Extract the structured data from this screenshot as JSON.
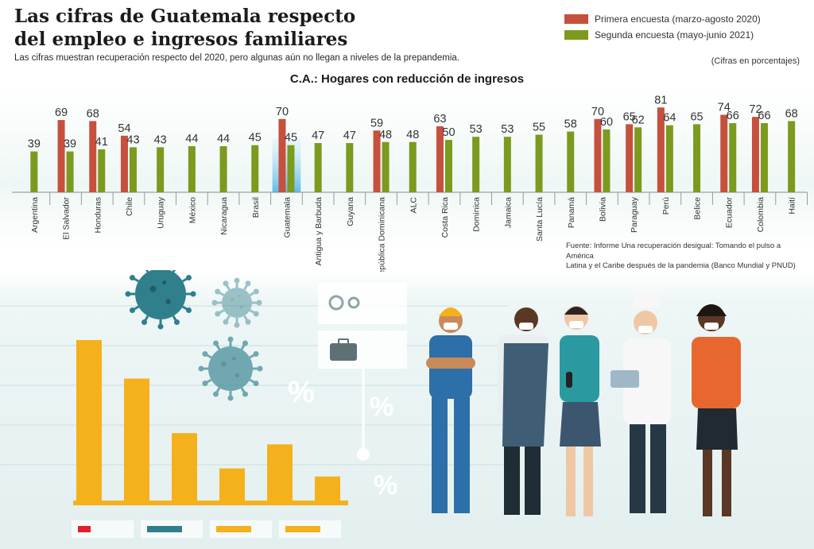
{
  "header": {
    "title_line1": "Las cifras de Guatemala respecto",
    "title_line2": "del empleo e ingresos familiares",
    "subtitle": "Las cifras muestran recuperación respecto del 2020, pero algunas aún no llegan a niveles de la prepandemia.",
    "note": "(Cifras en porcentajes)"
  },
  "legend": [
    {
      "label": "Primera encuesta (marzo-agosto 2020)",
      "color": "#c6503d"
    },
    {
      "label": "Segunda encuesta (mayo-junio 2021)",
      "color": "#7b9a1e"
    }
  ],
  "source": {
    "line1": "Fuente: Informe Una recuperación desigual: Tomando el pulso a América",
    "line2": "Latina y el Caribe después de la pandemia (Banco Mundial y PNUD)"
  },
  "chart_data": {
    "type": "bar",
    "title": "C.A.: Hogares con reducción de ingresos",
    "categories": [
      "Argentina",
      "El Salvador",
      "Honduras",
      "Chile",
      "Uruguay",
      "México",
      "Nicaragua",
      "Brasil",
      "Guatemala",
      "Antigua y Barbuda",
      "Guyana",
      "República Dominicana",
      "ALC",
      "Costa Rica",
      "Dominica",
      "Jamaica",
      "Santa Lucía",
      "Panamá",
      "Bolivia",
      "Paraguay",
      "Perú",
      "Belice",
      "Ecuador",
      "Colombia",
      "Haití"
    ],
    "highlight": "Guatemala",
    "series": [
      {
        "name": "Primera encuesta (marzo-agosto 2020)",
        "color": "#c6503d",
        "values": [
          null,
          69,
          68,
          54,
          null,
          null,
          null,
          null,
          70,
          null,
          null,
          59,
          null,
          63,
          null,
          null,
          null,
          null,
          70,
          65,
          81,
          null,
          74,
          72,
          null
        ]
      },
      {
        "name": "Segunda encuesta (mayo-junio 2021)",
        "color": "#7b9a1e",
        "values": [
          39,
          39,
          41,
          43,
          43,
          44,
          44,
          45,
          45,
          47,
          47,
          48,
          48,
          50,
          53,
          53,
          55,
          58,
          60,
          62,
          64,
          65,
          66,
          66,
          68
        ]
      }
    ],
    "ylim": [
      0,
      85
    ],
    "xlabel": "",
    "ylabel": ""
  },
  "decor": {
    "percent_sign": "%",
    "virus_color": "#2f7f8c",
    "deco_bars": [
      100,
      76,
      42,
      20,
      35,
      15
    ],
    "deco_bar_color": "#f4b11c",
    "deco_legend_colors": [
      "#e3202a",
      "#2f7f8c",
      "#f4b11c",
      "#f4b11c"
    ]
  }
}
